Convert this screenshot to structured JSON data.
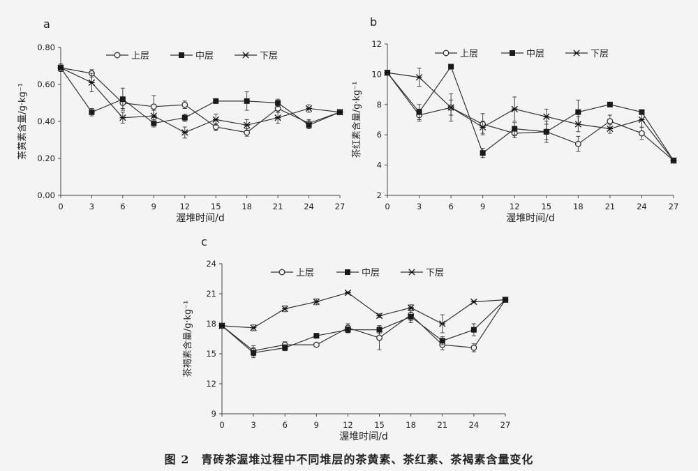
{
  "caption": "图 2　青砖茶渥堆过程中不同堆层的茶黄素、茶红素、茶褐素含量变化",
  "colors": {
    "line": "#333333",
    "axis": "#444444",
    "background": "#f4f4f4"
  },
  "chart_data": [
    {
      "type": "line",
      "panel_label": "a",
      "xlabel": "渥堆时间/d",
      "ylabel": "茶黄素含量/g·kg⁻¹",
      "x": [
        0,
        3,
        6,
        9,
        12,
        15,
        18,
        21,
        24,
        27
      ],
      "x_tick_labels": [
        "0",
        "3",
        "6",
        "9",
        "12",
        "15",
        "18",
        "21",
        "24",
        "27"
      ],
      "ylim": [
        0,
        0.8
      ],
      "y_ticks": [
        0,
        0.2,
        0.4,
        0.6,
        0.8
      ],
      "y_tick_labels": [
        "0.00",
        "0.20",
        "0.40",
        "0.60",
        "0.80"
      ],
      "legend_position": "top",
      "grid": false,
      "series": [
        {
          "name": "上层",
          "marker": "circle",
          "values": [
            0.69,
            0.66,
            0.5,
            0.48,
            0.49,
            0.37,
            0.34,
            0.47,
            0.39,
            0.45
          ],
          "errors": [
            0.02,
            0.02,
            0.03,
            0.06,
            0.02,
            0.02,
            0.02,
            0.02,
            0.02,
            0.01
          ]
        },
        {
          "name": "中层",
          "marker": "square",
          "values": [
            0.69,
            0.45,
            0.52,
            0.39,
            0.42,
            0.51,
            0.51,
            0.5,
            0.38,
            0.45
          ],
          "errors": [
            0.02,
            0.02,
            0.06,
            0.02,
            0.02,
            0.01,
            0.05,
            0.02,
            0.02,
            0.01
          ]
        },
        {
          "name": "下层",
          "marker": "star",
          "values": [
            0.69,
            0.61,
            0.42,
            0.43,
            0.34,
            0.41,
            0.38,
            0.42,
            0.47,
            0.45
          ],
          "errors": [
            0.02,
            0.05,
            0.03,
            0.03,
            0.03,
            0.03,
            0.03,
            0.03,
            0.02,
            0.01
          ]
        }
      ]
    },
    {
      "type": "line",
      "panel_label": "b",
      "xlabel": "渥堆时间/d",
      "ylabel": "茶红素含量/g·kg⁻¹",
      "x": [
        0,
        3,
        6,
        9,
        12,
        15,
        18,
        21,
        24,
        27
      ],
      "x_tick_labels": [
        "0",
        "3",
        "6",
        "9",
        "12",
        "15",
        "18",
        "21",
        "24",
        "27"
      ],
      "ylim": [
        2,
        12
      ],
      "y_ticks": [
        2,
        4,
        6,
        8,
        10,
        12
      ],
      "y_tick_labels": [
        "2",
        "4",
        "6",
        "8",
        "10",
        "12"
      ],
      "legend_position": "top",
      "grid": false,
      "series": [
        {
          "name": "上层",
          "marker": "circle",
          "values": [
            10.1,
            7.3,
            7.8,
            6.7,
            6.1,
            6.2,
            5.4,
            6.9,
            6.1,
            4.3
          ],
          "errors": [
            0.1,
            0.4,
            0.9,
            0.7,
            0.3,
            0.7,
            0.5,
            0.4,
            0.4,
            0.1
          ]
        },
        {
          "name": "中层",
          "marker": "square",
          "values": [
            10.1,
            7.5,
            10.5,
            4.8,
            6.4,
            6.2,
            7.5,
            8.0,
            7.5,
            4.3
          ],
          "errors": [
            0.1,
            0.5,
            0.1,
            0.3,
            0.4,
            0.5,
            0.8,
            0.1,
            0.1,
            0.1
          ]
        },
        {
          "name": "下层",
          "marker": "star",
          "values": [
            10.1,
            9.8,
            7.8,
            6.5,
            7.7,
            7.2,
            6.7,
            6.4,
            7.0,
            4.3
          ],
          "errors": [
            0.1,
            0.6,
            0.5,
            0.4,
            0.8,
            0.5,
            0.5,
            0.3,
            0.5,
            0.1
          ]
        }
      ]
    },
    {
      "type": "line",
      "panel_label": "c",
      "xlabel": "渥堆时间/d",
      "ylabel": "茶褐素含量/g·kg⁻¹",
      "x": [
        0,
        3,
        6,
        9,
        12,
        15,
        18,
        21,
        24,
        27
      ],
      "x_tick_labels": [
        "0",
        "3",
        "6",
        "9",
        "12",
        "15",
        "18",
        "21",
        "24",
        "27"
      ],
      "ylim": [
        9,
        24
      ],
      "y_ticks": [
        9,
        12,
        15,
        18,
        21,
        24
      ],
      "y_tick_labels": [
        "9",
        "12",
        "15",
        "18",
        "21",
        "24"
      ],
      "legend_position": "top",
      "grid": false,
      "series": [
        {
          "name": "上层",
          "marker": "circle",
          "values": [
            17.8,
            15.3,
            15.9,
            15.9,
            17.6,
            16.6,
            18.9,
            15.9,
            15.6,
            20.4
          ],
          "errors": [
            0.2,
            0.5,
            0.3,
            0.2,
            0.4,
            1.2,
            0.6,
            0.5,
            0.4,
            0.1
          ]
        },
        {
          "name": "中层",
          "marker": "square",
          "values": [
            17.8,
            15.1,
            15.6,
            16.8,
            17.4,
            17.4,
            18.7,
            16.3,
            17.4,
            20.4
          ],
          "errors": [
            0.2,
            0.5,
            0.3,
            0.2,
            0.3,
            0.4,
            0.6,
            0.4,
            0.6,
            0.1
          ]
        },
        {
          "name": "下层",
          "marker": "star",
          "values": [
            17.8,
            17.6,
            19.5,
            20.2,
            21.1,
            18.8,
            19.6,
            18.0,
            20.2,
            20.4
          ],
          "errors": [
            0.2,
            0.3,
            0.3,
            0.3,
            0.1,
            0.2,
            0.3,
            0.9,
            0.1,
            0.1
          ]
        }
      ]
    }
  ]
}
